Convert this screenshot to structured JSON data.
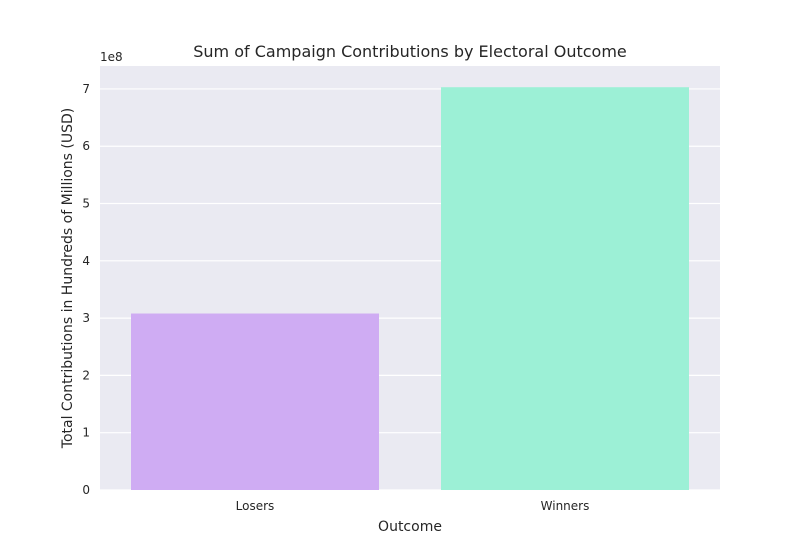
{
  "chart_data": {
    "type": "bar",
    "title": "Sum of Campaign Contributions by Electoral Outcome",
    "xlabel": "Outcome",
    "ylabel": "Total Contributions in Hundreds of Millions (USD)",
    "offset_text": "1e8",
    "categories": [
      "Losers",
      "Winners"
    ],
    "values": [
      308000000,
      703000000
    ],
    "colors": [
      "#cfacf3",
      "#9cf0d6"
    ],
    "ylim": [
      0,
      740000000
    ],
    "yticks": [
      0,
      100000000,
      200000000,
      300000000,
      400000000,
      500000000,
      600000000,
      700000000
    ],
    "ytick_labels": [
      "0",
      "1",
      "2",
      "3",
      "4",
      "5",
      "6",
      "7"
    ],
    "grid": true,
    "background_color": "#eaeaf2",
    "grid_color": "#ffffff"
  }
}
